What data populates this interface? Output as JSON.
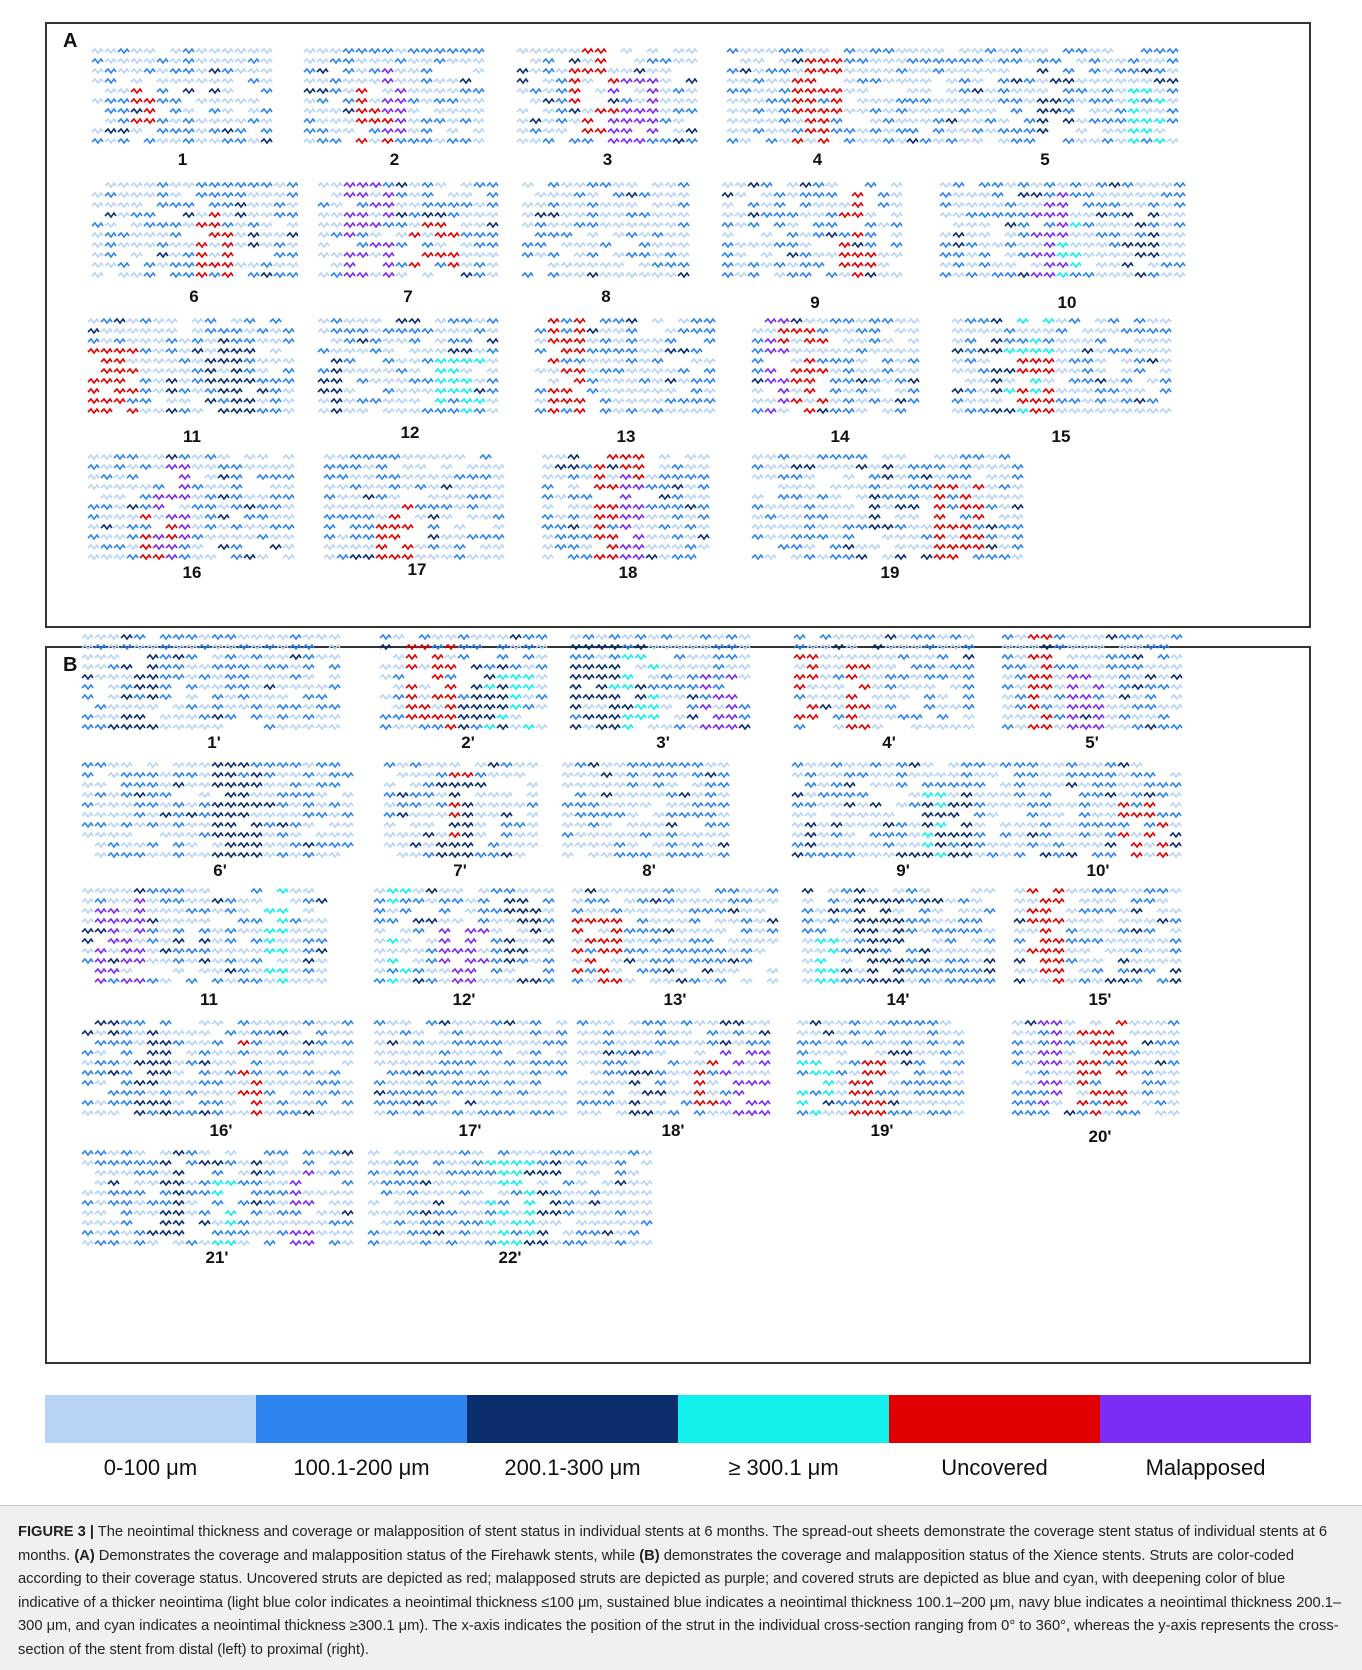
{
  "colors": {
    "light_blue": "#b8d4f5",
    "sustained_blue": "#2f85f0",
    "navy": "#0b2f6e",
    "cyan": "#12f0ec",
    "red": "#e00000",
    "purple": "#7b2cf5"
  },
  "panel_a": {
    "letter": "A",
    "sheets": [
      {
        "label": "1",
        "extras": [
          "red"
        ]
      },
      {
        "label": "2",
        "extras": [
          "red",
          "purple"
        ]
      },
      {
        "label": "3",
        "extras": [
          "red",
          "purple"
        ]
      },
      {
        "label": "4",
        "extras": [
          "red"
        ]
      },
      {
        "label": "5",
        "extras": [
          "navy",
          "cyan"
        ]
      },
      {
        "label": "6",
        "extras": [
          "red"
        ]
      },
      {
        "label": "7",
        "extras": [
          "red",
          "purple"
        ]
      },
      {
        "label": "8",
        "extras": []
      },
      {
        "label": "9",
        "extras": [
          "red"
        ]
      },
      {
        "label": "10",
        "extras": [
          "navy",
          "cyan",
          "purple"
        ]
      },
      {
        "label": "11",
        "extras": [
          "red",
          "navy"
        ]
      },
      {
        "label": "12",
        "extras": [
          "navy",
          "cyan"
        ]
      },
      {
        "label": "13",
        "extras": [
          "red"
        ]
      },
      {
        "label": "14",
        "extras": [
          "red",
          "purple"
        ]
      },
      {
        "label": "15",
        "extras": [
          "navy",
          "cyan",
          "red"
        ]
      },
      {
        "label": "16",
        "extras": [
          "red",
          "purple"
        ]
      },
      {
        "label": "17",
        "extras": [
          "red"
        ]
      },
      {
        "label": "18",
        "extras": [
          "red",
          "purple"
        ]
      },
      {
        "label": "19",
        "extras": [
          "navy",
          "red"
        ]
      }
    ]
  },
  "panel_b": {
    "letter": "B",
    "sheets": [
      {
        "label": "1'",
        "extras": [
          "navy"
        ]
      },
      {
        "label": "2'",
        "extras": [
          "red",
          "cyan",
          "navy"
        ]
      },
      {
        "label": "3'",
        "extras": [
          "cyan",
          "purple",
          "navy"
        ]
      },
      {
        "label": "4'",
        "extras": [
          "red",
          "red"
        ]
      },
      {
        "label": "5'",
        "extras": [
          "purple",
          "red"
        ]
      },
      {
        "label": "6'",
        "extras": [
          "navy"
        ]
      },
      {
        "label": "7'",
        "extras": [
          "red",
          "navy"
        ]
      },
      {
        "label": "8'",
        "extras": []
      },
      {
        "label": "9'",
        "extras": [
          "navy",
          "cyan"
        ]
      },
      {
        "label": "10'",
        "extras": [
          "red"
        ]
      },
      {
        "label": "11",
        "extras": [
          "cyan",
          "navy",
          "purple"
        ]
      },
      {
        "label": "12'",
        "extras": [
          "navy",
          "cyan",
          "purple"
        ]
      },
      {
        "label": "13'",
        "extras": [
          "red"
        ]
      },
      {
        "label": "14'",
        "extras": [
          "cyan",
          "navy"
        ]
      },
      {
        "label": "15'",
        "extras": [
          "red"
        ]
      },
      {
        "label": "16'",
        "extras": [
          "navy",
          "red"
        ]
      },
      {
        "label": "17'",
        "extras": []
      },
      {
        "label": "18'",
        "extras": [
          "navy",
          "purple",
          "red"
        ]
      },
      {
        "label": "19'",
        "extras": [
          "red",
          "cyan"
        ]
      },
      {
        "label": "20'",
        "extras": [
          "red",
          "purple"
        ]
      },
      {
        "label": "21'",
        "extras": [
          "cyan",
          "navy",
          "purple"
        ]
      },
      {
        "label": "22'",
        "extras": [
          "navy",
          "cyan"
        ]
      }
    ]
  },
  "legend": [
    {
      "label": "0-100 μm",
      "color": "#b8d4f5"
    },
    {
      "label": "100.1-200 μm",
      "color": "#2f85f0"
    },
    {
      "label": "200.1-300 μm",
      "color": "#0b2f6e"
    },
    {
      "label": "≥ 300.1 μm",
      "color": "#12f0ec"
    },
    {
      "label": "Uncovered",
      "color": "#e00000"
    },
    {
      "label": "Malapposed",
      "color": "#7b2cf5"
    }
  ],
  "caption": {
    "figure_label": "FIGURE 3 |",
    "t1": " The neointimal thickness and coverage or malapposition of stent status in individual stents at 6 months. The spread-out sheets demonstrate the coverage stent status of individual stents at 6 months. ",
    "a_ref": "(A)",
    "t2": " Demonstrates the coverage and malapposition status of the Firehawk stents, while ",
    "b_ref": "(B)",
    "t3": " demonstrates the coverage and malapposition status of the Xience stents. Struts are color-coded according to their coverage status. Uncovered struts are depicted as red; malapposed struts are depicted as purple; and covered struts are depicted as blue and cyan, with deepening color of blue indicative of a thicker neointima (light blue color indicates a neointimal thickness ≤100 μm, sustained blue indicates a neointimal thickness 100.1–200 μm, navy blue indicates a neointimal thickness 200.1–300 μm, and cyan indicates a neointimal thickness ≥300.1 μm). The x-axis indicates the position of the strut in the individual cross-section ranging from 0° to 360°, whereas the y-axis represents the cross-section of the stent from distal (left) to proximal (right)."
  }
}
